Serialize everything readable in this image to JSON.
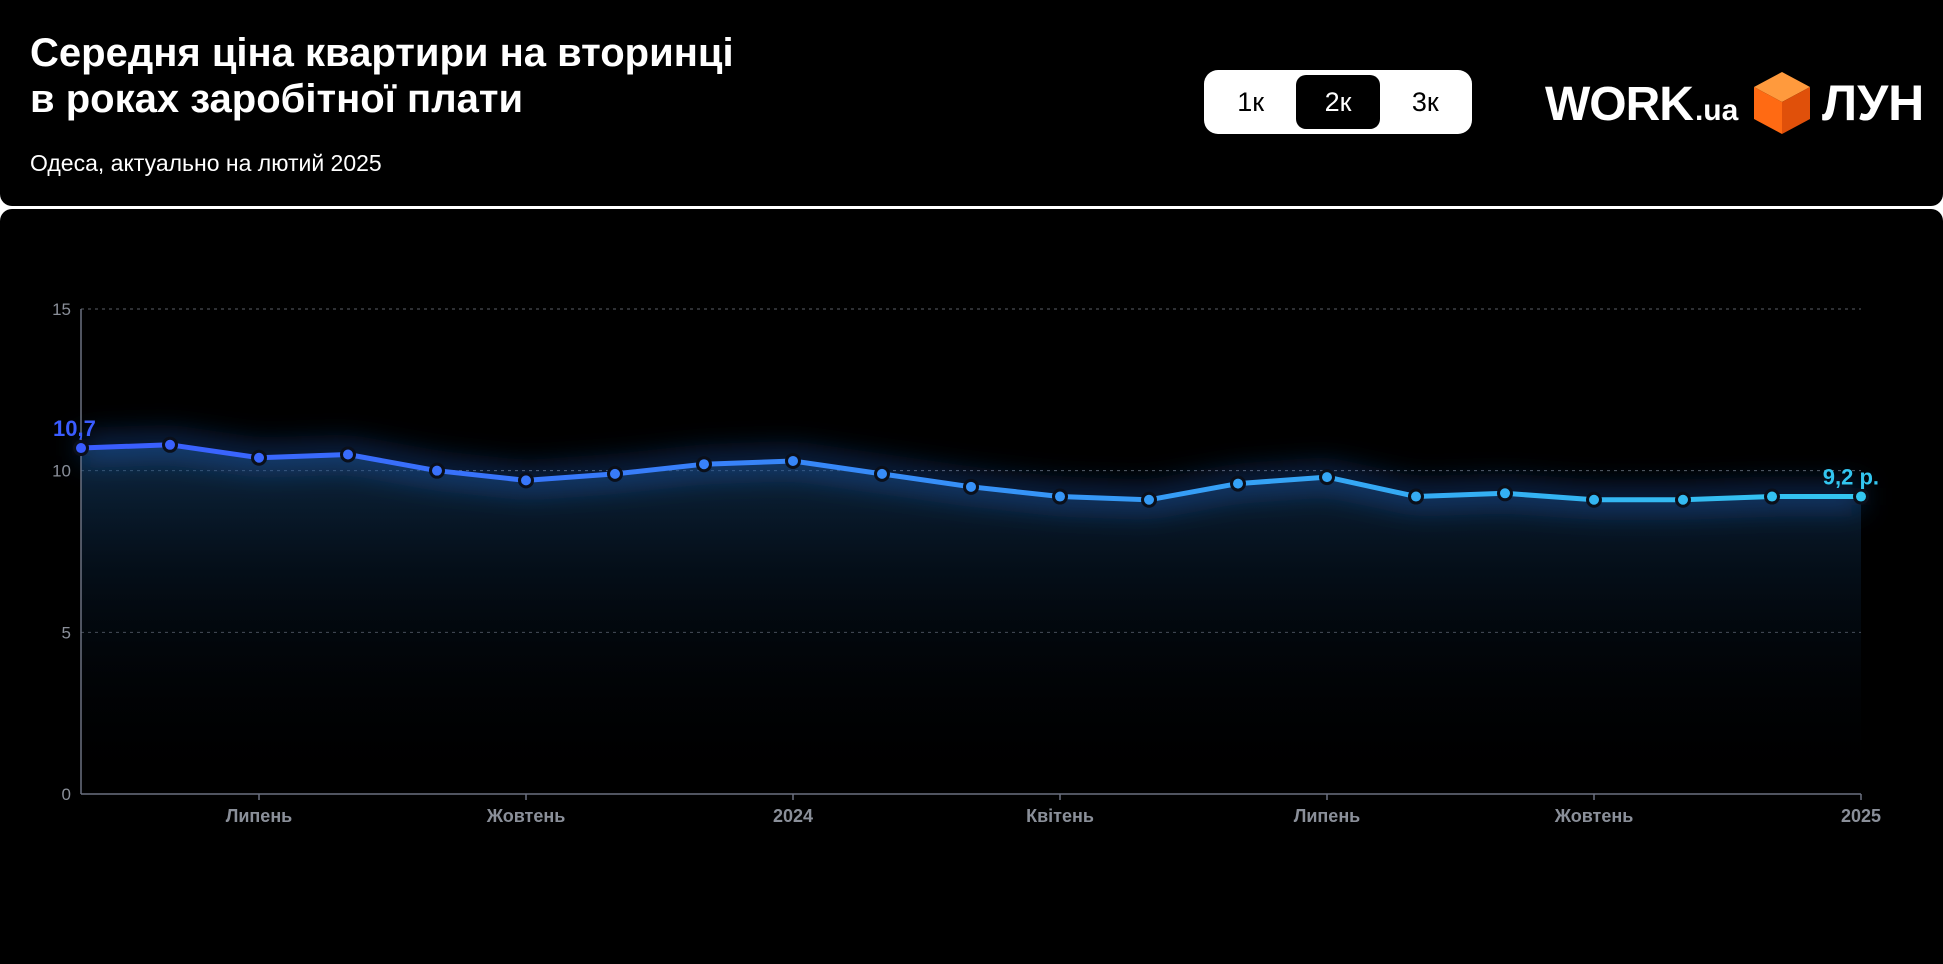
{
  "header": {
    "title_line1": "Середня ціна квартири на вторинці",
    "title_line2": "в роках заробітної плати",
    "subtitle": "Одеса, актуально на лютий 2025"
  },
  "toggle": {
    "options": [
      "1к",
      "2к",
      "3к"
    ],
    "selected": "2к"
  },
  "logos": {
    "work_main": "WORK",
    "work_ext": ".ua",
    "lun_icon": "orange-cube-icon",
    "lun_text": "ЛУН"
  },
  "colors": {
    "line_start": "#3a5cff",
    "line_end": "#33c6f0",
    "background": "#000000",
    "grid": "#5a5e66",
    "lun_orange": "#ff6a13"
  },
  "chart_data": {
    "type": "line",
    "title": "",
    "xlabel": "",
    "ylabel": "",
    "ylim": [
      0,
      15
    ],
    "y_ticks": [
      0,
      5,
      10,
      15
    ],
    "grid": true,
    "x_tick_labels": [
      {
        "index": 2,
        "label": "Липень"
      },
      {
        "index": 5,
        "label": "Жовтень"
      },
      {
        "index": 8,
        "label": "2024"
      },
      {
        "index": 11,
        "label": "Квітень"
      },
      {
        "index": 14,
        "label": "Липень"
      },
      {
        "index": 17,
        "label": "Жовтень"
      },
      {
        "index": 20,
        "label": "2025"
      }
    ],
    "values": [
      10.7,
      10.8,
      10.4,
      10.5,
      10.0,
      9.7,
      9.9,
      10.2,
      10.3,
      9.9,
      9.5,
      9.2,
      9.1,
      9.6,
      9.8,
      9.2,
      9.3,
      9.1,
      9.1,
      9.2,
      9.2
    ],
    "start_label": "10,7",
    "end_label": "9,2 р."
  }
}
